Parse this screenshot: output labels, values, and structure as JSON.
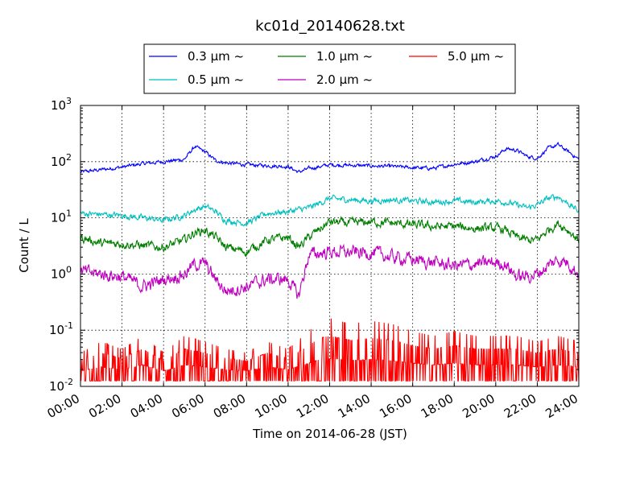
{
  "chart_data": {
    "type": "line",
    "title": "kc01d_20140628.txt",
    "xlabel": "Time on 2014-06-28 (JST)",
    "ylabel": "Count / L",
    "y_scale": "log",
    "ylim": [
      0.01,
      1000
    ],
    "y_ticks": [
      {
        "base": "10",
        "exp": "-2",
        "value": 0.01
      },
      {
        "base": "10",
        "exp": "-1",
        "value": 0.1
      },
      {
        "base": "10",
        "exp": "0",
        "value": 1
      },
      {
        "base": "10",
        "exp": "1",
        "value": 10
      },
      {
        "base": "10",
        "exp": "2",
        "value": 100
      },
      {
        "base": "10",
        "exp": "3",
        "value": 1000
      }
    ],
    "xlim": [
      "00:00",
      "24:00"
    ],
    "x_ticks": [
      "00:00",
      "02:00",
      "04:00",
      "06:00",
      "08:00",
      "10:00",
      "12:00",
      "14:00",
      "16:00",
      "18:00",
      "20:00",
      "22:00",
      "24:00"
    ],
    "grid": true,
    "legend_position": "top-center",
    "legend_suffix": "~",
    "series": [
      {
        "name": "0.3 µm",
        "color": "#0000ff",
        "x": [
          "00:00",
          "01:00",
          "02:00",
          "03:00",
          "04:00",
          "05:00",
          "05:30",
          "06:00",
          "06:30",
          "07:00",
          "08:00",
          "09:00",
          "10:00",
          "10:30",
          "11:00",
          "12:00",
          "13:00",
          "14:00",
          "15:00",
          "16:00",
          "17:00",
          "18:00",
          "19:00",
          "20:00",
          "20:30",
          "21:00",
          "21:30",
          "22:00",
          "22:30",
          "23:00",
          "23:30",
          "24:00"
        ],
        "values": [
          65,
          72,
          80,
          92,
          100,
          110,
          185,
          150,
          105,
          95,
          88,
          85,
          82,
          65,
          75,
          88,
          86,
          84,
          82,
          78,
          76,
          90,
          100,
          125,
          170,
          160,
          125,
          115,
          170,
          200,
          150,
          110
        ]
      },
      {
        "name": "0.5 µm",
        "color": "#00bfbf",
        "x": [
          "00:00",
          "01:00",
          "02:00",
          "03:00",
          "04:00",
          "05:00",
          "05:30",
          "06:00",
          "06:30",
          "07:00",
          "08:00",
          "09:00",
          "10:00",
          "10:30",
          "11:00",
          "12:00",
          "13:00",
          "14:00",
          "15:00",
          "16:00",
          "17:00",
          "18:00",
          "19:00",
          "20:00",
          "20:30",
          "21:00",
          "21:30",
          "22:00",
          "22:30",
          "23:00",
          "23:30",
          "24:00"
        ],
        "values": [
          12,
          11.5,
          11,
          10,
          9,
          11,
          14,
          16,
          13,
          9,
          8,
          12,
          13,
          14,
          15,
          22,
          21,
          20,
          21,
          20,
          19,
          20,
          19,
          20,
          19,
          17,
          15,
          17,
          22,
          24,
          18,
          13
        ]
      },
      {
        "name": "1.0 µm",
        "color": "#007f00",
        "x": [
          "00:00",
          "01:00",
          "02:00",
          "03:00",
          "04:00",
          "05:00",
          "05:30",
          "06:00",
          "06:30",
          "07:00",
          "08:00",
          "09:00",
          "10:00",
          "10:30",
          "11:00",
          "12:00",
          "13:00",
          "14:00",
          "15:00",
          "16:00",
          "17:00",
          "18:00",
          "19:00",
          "20:00",
          "20:30",
          "21:00",
          "21:30",
          "22:00",
          "22:30",
          "23:00",
          "23:30",
          "24:00"
        ],
        "values": [
          4.5,
          3.5,
          3.5,
          3.2,
          3,
          4,
          5.5,
          6,
          4.5,
          3,
          2.5,
          4,
          4.5,
          3,
          4.5,
          8.5,
          8,
          8.5,
          8,
          7.5,
          7,
          7,
          6.5,
          6.5,
          6,
          4.5,
          4,
          4,
          6,
          8,
          6,
          4
        ]
      },
      {
        "name": "2.0 µm",
        "color": "#bf00bf",
        "x": [
          "00:00",
          "01:00",
          "02:00",
          "03:00",
          "04:00",
          "05:00",
          "05:30",
          "06:00",
          "06:30",
          "07:00",
          "08:00",
          "09:00",
          "10:00",
          "10:30",
          "11:00",
          "12:00",
          "13:00",
          "14:00",
          "15:00",
          "16:00",
          "17:00",
          "18:00",
          "19:00",
          "20:00",
          "20:30",
          "21:00",
          "21:30",
          "22:00",
          "22:30",
          "23:00",
          "23:30",
          "24:00"
        ],
        "values": [
          1.1,
          1.0,
          0.9,
          0.6,
          0.8,
          1.0,
          1.5,
          1.5,
          0.8,
          0.5,
          0.6,
          0.8,
          0.8,
          0.4,
          2.2,
          2.5,
          2.4,
          2.4,
          2.0,
          1.8,
          1.6,
          1.4,
          1.5,
          1.6,
          1.5,
          0.9,
          0.9,
          1.0,
          1.4,
          1.8,
          1.6,
          1.0
        ]
      },
      {
        "name": "5.0 µm",
        "color": "#ff0000",
        "x": [
          "00:00",
          "01:00",
          "02:00",
          "03:00",
          "04:00",
          "05:00",
          "06:00",
          "07:00",
          "08:00",
          "09:00",
          "10:00",
          "11:00",
          "11:30",
          "12:00",
          "13:00",
          "14:00",
          "15:00",
          "16:00",
          "17:00",
          "18:00",
          "19:00",
          "20:00",
          "21:00",
          "22:00",
          "23:00",
          "24:00"
        ],
        "values": [
          0.013,
          0.02,
          0.015,
          0.025,
          0.013,
          0.025,
          0.02,
          0.015,
          0.013,
          0.02,
          0.015,
          0.03,
          0.045,
          0.05,
          0.04,
          0.045,
          0.04,
          0.03,
          0.025,
          0.03,
          0.025,
          0.025,
          0.025,
          0.02,
          0.025,
          0.02
        ]
      }
    ]
  }
}
